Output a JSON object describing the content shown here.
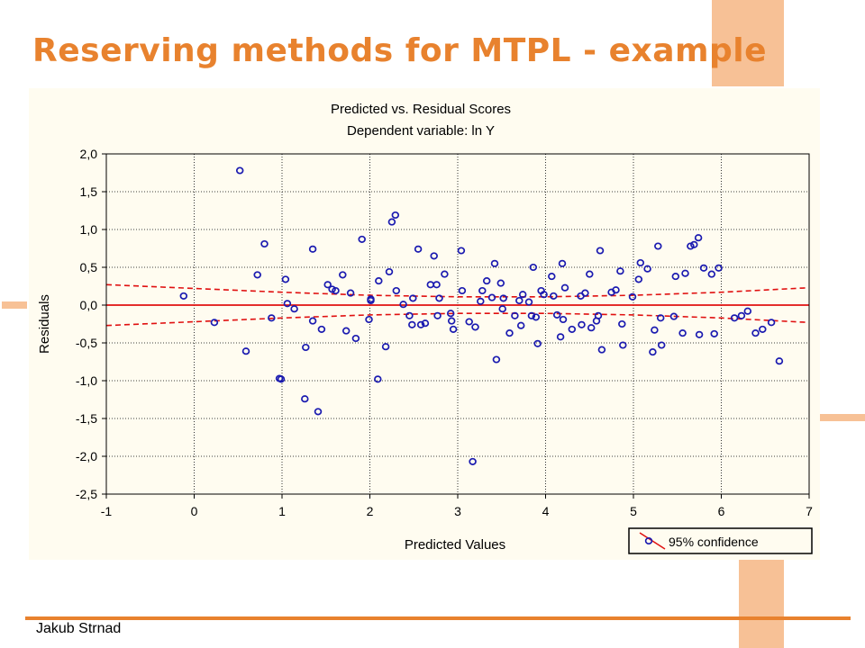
{
  "slide": {
    "title": "Reserving methods for MTPL - example",
    "author": "Jakub Strnad"
  },
  "colors": {
    "title": "#e8822e",
    "decoration": "#f7c196",
    "panel": "#fffcf0",
    "points": "#1a1ab0",
    "fit_line": "#e01010"
  },
  "chart_data": {
    "type": "scatter",
    "title": "Predicted vs. Residual Scores",
    "subtitle": "Dependent variable: ln Y",
    "xlabel": "Predicted Values",
    "ylabel": "Residuals",
    "xlim": [
      -1,
      7
    ],
    "ylim": [
      -2.5,
      2.0
    ],
    "xticks": [
      "-1",
      "0",
      "1",
      "2",
      "3",
      "4",
      "5",
      "6",
      "7"
    ],
    "yticks": [
      "2,0",
      "1,5",
      "1,0",
      "0,5",
      "0,0",
      "-0,5",
      "-1,0",
      "-1,5",
      "-2,0",
      "-2,5"
    ],
    "grid": true,
    "legend_position": "bottom-right",
    "legend": "95% confidence",
    "fit_line": {
      "slope": 0,
      "intercept": 0
    },
    "confidence_band": {
      "upper": [
        [
          -1,
          0.27
        ],
        [
          0,
          0.22
        ],
        [
          1,
          0.17
        ],
        [
          2,
          0.13
        ],
        [
          3,
          0.11
        ],
        [
          4,
          0.11
        ],
        [
          5,
          0.13
        ],
        [
          6,
          0.17
        ],
        [
          7,
          0.23
        ]
      ],
      "lower": [
        [
          -1,
          -0.27
        ],
        [
          0,
          -0.22
        ],
        [
          1,
          -0.17
        ],
        [
          2,
          -0.13
        ],
        [
          3,
          -0.11
        ],
        [
          4,
          -0.11
        ],
        [
          5,
          -0.13
        ],
        [
          6,
          -0.17
        ],
        [
          7,
          -0.23
        ]
      ]
    },
    "points": [
      [
        -0.12,
        0.12
      ],
      [
        0.23,
        -0.23
      ],
      [
        0.52,
        1.78
      ],
      [
        0.59,
        -0.61
      ],
      [
        0.72,
        0.4
      ],
      [
        0.8,
        0.81
      ],
      [
        0.88,
        -0.17
      ],
      [
        0.97,
        -0.97
      ],
      [
        0.99,
        -0.98
      ],
      [
        1.04,
        0.34
      ],
      [
        1.06,
        0.02
      ],
      [
        1.14,
        -0.05
      ],
      [
        1.26,
        -1.24
      ],
      [
        1.27,
        -0.56
      ],
      [
        1.35,
        -0.21
      ],
      [
        1.35,
        0.74
      ],
      [
        1.41,
        -1.41
      ],
      [
        1.45,
        -0.32
      ],
      [
        1.52,
        0.27
      ],
      [
        1.57,
        0.21
      ],
      [
        1.61,
        0.19
      ],
      [
        1.69,
        0.4
      ],
      [
        1.73,
        -0.34
      ],
      [
        1.78,
        0.16
      ],
      [
        1.84,
        -0.44
      ],
      [
        1.91,
        0.87
      ],
      [
        1.99,
        -0.19
      ],
      [
        2.01,
        0.08
      ],
      [
        2.01,
        0.06
      ],
      [
        2.09,
        -0.98
      ],
      [
        2.1,
        0.32
      ],
      [
        2.18,
        -0.55
      ],
      [
        2.22,
        0.44
      ],
      [
        2.25,
        1.1
      ],
      [
        2.29,
        1.19
      ],
      [
        2.3,
        0.19
      ],
      [
        2.38,
        0.01
      ],
      [
        2.45,
        -0.14
      ],
      [
        2.48,
        -0.26
      ],
      [
        2.49,
        0.09
      ],
      [
        2.55,
        0.74
      ],
      [
        2.58,
        -0.26
      ],
      [
        2.63,
        -0.24
      ],
      [
        2.69,
        0.27
      ],
      [
        2.73,
        0.65
      ],
      [
        2.76,
        0.27
      ],
      [
        2.77,
        -0.14
      ],
      [
        2.79,
        0.09
      ],
      [
        2.85,
        0.41
      ],
      [
        2.92,
        -0.11
      ],
      [
        2.93,
        -0.21
      ],
      [
        2.95,
        -0.32
      ],
      [
        3.04,
        0.72
      ],
      [
        3.05,
        0.19
      ],
      [
        3.13,
        -0.22
      ],
      [
        3.17,
        -2.07
      ],
      [
        3.2,
        -0.29
      ],
      [
        3.26,
        0.05
      ],
      [
        3.28,
        0.19
      ],
      [
        3.33,
        0.32
      ],
      [
        3.39,
        0.1
      ],
      [
        3.42,
        0.55
      ],
      [
        3.44,
        -0.72
      ],
      [
        3.49,
        0.29
      ],
      [
        3.51,
        -0.05
      ],
      [
        3.52,
        0.09
      ],
      [
        3.59,
        -0.37
      ],
      [
        3.65,
        -0.14
      ],
      [
        3.7,
        0.06
      ],
      [
        3.72,
        -0.27
      ],
      [
        3.74,
        0.14
      ],
      [
        3.81,
        0.04
      ],
      [
        3.84,
        -0.14
      ],
      [
        3.86,
        0.5
      ],
      [
        3.89,
        -0.16
      ],
      [
        3.91,
        -0.51
      ],
      [
        3.95,
        0.19
      ],
      [
        3.98,
        0.14
      ],
      [
        4.07,
        0.38
      ],
      [
        4.09,
        0.12
      ],
      [
        4.13,
        -0.13
      ],
      [
        4.17,
        -0.42
      ],
      [
        4.19,
        0.55
      ],
      [
        4.2,
        -0.19
      ],
      [
        4.22,
        0.23
      ],
      [
        4.3,
        -0.32
      ],
      [
        4.4,
        0.12
      ],
      [
        4.41,
        -0.26
      ],
      [
        4.45,
        0.16
      ],
      [
        4.5,
        0.41
      ],
      [
        4.52,
        -0.3
      ],
      [
        4.58,
        -0.21
      ],
      [
        4.6,
        -0.14
      ],
      [
        4.62,
        0.72
      ],
      [
        4.64,
        -0.59
      ],
      [
        4.75,
        0.17
      ],
      [
        4.8,
        0.2
      ],
      [
        4.85,
        0.45
      ],
      [
        4.87,
        -0.25
      ],
      [
        4.88,
        -0.53
      ],
      [
        4.99,
        0.11
      ],
      [
        5.06,
        0.34
      ],
      [
        5.08,
        0.56
      ],
      [
        5.16,
        0.48
      ],
      [
        5.22,
        -0.62
      ],
      [
        5.24,
        -0.33
      ],
      [
        5.28,
        0.78
      ],
      [
        5.31,
        -0.17
      ],
      [
        5.32,
        -0.53
      ],
      [
        5.46,
        -0.15
      ],
      [
        5.48,
        0.38
      ],
      [
        5.56,
        -0.37
      ],
      [
        5.59,
        0.42
      ],
      [
        5.65,
        0.78
      ],
      [
        5.69,
        0.8
      ],
      [
        5.74,
        0.89
      ],
      [
        5.75,
        -0.39
      ],
      [
        5.8,
        0.49
      ],
      [
        5.89,
        0.41
      ],
      [
        5.92,
        -0.38
      ],
      [
        5.97,
        0.49
      ],
      [
        6.15,
        -0.17
      ],
      [
        6.23,
        -0.14
      ],
      [
        6.3,
        -0.08
      ],
      [
        6.39,
        -0.37
      ],
      [
        6.47,
        -0.32
      ],
      [
        6.57,
        -0.23
      ],
      [
        6.66,
        -0.74
      ]
    ]
  }
}
